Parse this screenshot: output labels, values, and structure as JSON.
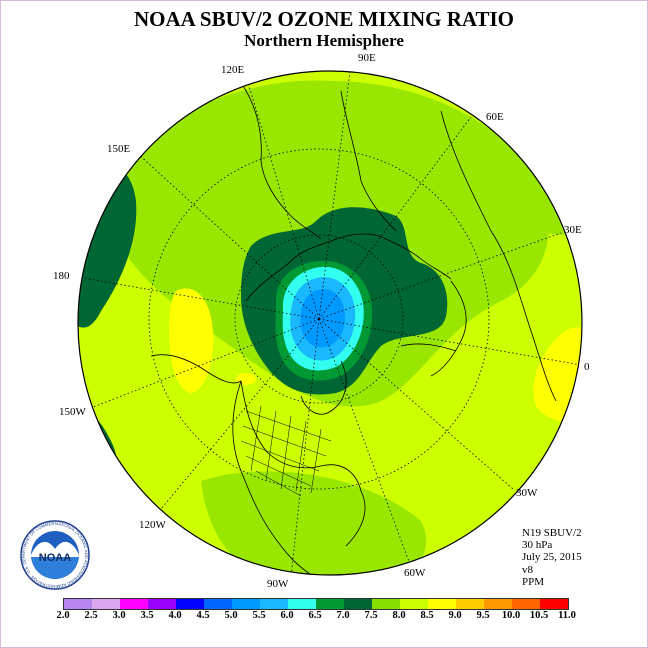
{
  "title": "NOAA SBUV/2 OZONE MIXING RATIO",
  "subtitle": "Northern Hemisphere",
  "longitude_labels": {
    "e90": "90E",
    "e120": "120E",
    "e60": "60E",
    "e150": "150E",
    "e30": "30E",
    "d180": "180",
    "d0": "0",
    "w150": "150W",
    "w30": "30W",
    "w120": "120W",
    "w60": "60W",
    "w90": "90W"
  },
  "info": {
    "instrument": "N19 SBUV/2",
    "level": "30 hPa",
    "date": "July 25, 2015",
    "version": "v8",
    "units": "PPM"
  },
  "logo": {
    "text": "NOAA",
    "ring_text": "NATIONAL OCEANIC AND ATMOSPHERIC ADMINISTRATION · U.S. DEPARTMENT OF COMMERCE"
  },
  "colorbar": {
    "ticks": [
      "2.0",
      "2.5",
      "3.0",
      "3.5",
      "4.0",
      "4.5",
      "5.0",
      "5.5",
      "6.0",
      "6.5",
      "7.0",
      "7.5",
      "8.0",
      "8.5",
      "9.0",
      "9.5",
      "10.0",
      "10.5",
      "11.0"
    ],
    "colors": [
      "#b585f0",
      "#d9a6f0",
      "#ff00ff",
      "#9900ff",
      "#0000ff",
      "#0066ff",
      "#0099ff",
      "#19b8ff",
      "#33ffee",
      "#009933",
      "#006633",
      "#88e000",
      "#ccff00",
      "#ffff00",
      "#ffcc00",
      "#ff9900",
      "#ff6600",
      "#ff0000",
      "#996633"
    ]
  },
  "field_colors": {
    "ocean_base": "#ccff00",
    "mid": "#99e600",
    "dark_green": "#006633",
    "green": "#009933",
    "yellow": "#ffff00",
    "cyan": "#33ffee",
    "light_blue": "#19b8ff",
    "blue": "#0099ff"
  }
}
